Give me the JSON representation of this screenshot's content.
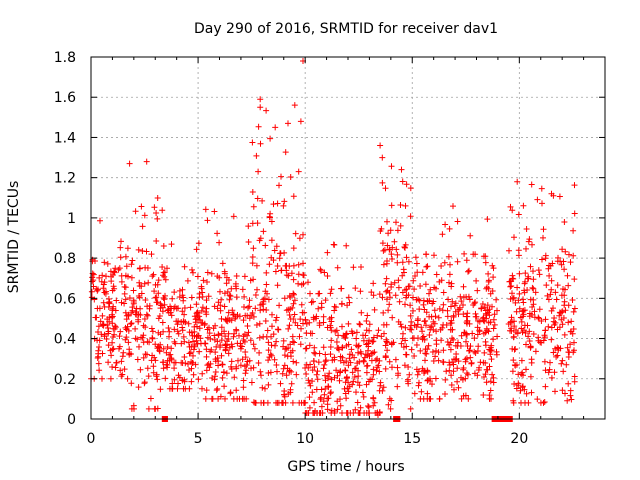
{
  "chart_data": {
    "type": "scatter",
    "title": "Day 290 of 2016, SRMTID for receiver dav1",
    "xlabel": "GPS time / hours",
    "ylabel": "SRMTID / TECUs",
    "xlim": [
      0,
      24
    ],
    "ylim": [
      0,
      1.8
    ],
    "xticks": [
      0,
      5,
      10,
      15,
      20
    ],
    "xtick_labels": [
      "0",
      "5",
      "10",
      "15",
      "20"
    ],
    "yticks": [
      0,
      0.2,
      0.4,
      0.6,
      0.8,
      1,
      1.2,
      1.4,
      1.6,
      1.8
    ],
    "ytick_labels": [
      "0",
      "0.2",
      "0.4",
      "0.6",
      "0.8",
      "1",
      "1.2",
      "1.4",
      "1.6",
      "1.8"
    ],
    "grid": true,
    "marker": "plus",
    "series": [
      {
        "name": "SRMTID",
        "color": "#ff0000",
        "cluster_summary": [
          {
            "x_range": [
              0.0,
              1.8
            ],
            "y_range": [
              0.2,
              1.0
            ],
            "typical": 0.5
          },
          {
            "x_range": [
              1.8,
              3.5
            ],
            "y_range": [
              0.05,
              1.12
            ],
            "typical": 0.5
          },
          {
            "x_range": [
              3.5,
              5.2
            ],
            "y_range": [
              0.15,
              0.9
            ],
            "typical": 0.4
          },
          {
            "x_range": [
              5.2,
              7.5
            ],
            "y_range": [
              0.1,
              1.05
            ],
            "typical": 0.4
          },
          {
            "x_range": [
              7.5,
              10.0
            ],
            "y_range": [
              0.08,
              1.59
            ],
            "typical": 0.45
          },
          {
            "x_range": [
              10.0,
              13.5
            ],
            "y_range": [
              0.03,
              0.96
            ],
            "typical": 0.28
          },
          {
            "x_range": [
              13.5,
              15.0
            ],
            "y_range": [
              0.05,
              1.36
            ],
            "typical": 0.55
          },
          {
            "x_range": [
              15.0,
              19.0
            ],
            "y_range": [
              0.1,
              1.06
            ],
            "typical": 0.42
          },
          {
            "x_range": [
              19.5,
              22.6
            ],
            "y_range": [
              0.08,
              1.18
            ],
            "typical": 0.5
          }
        ],
        "outliers": [
          {
            "x": 9.9,
            "y": 1.78
          },
          {
            "x": 9.8,
            "y": 1.48
          },
          {
            "x": 7.9,
            "y": 1.59
          },
          {
            "x": 7.9,
            "y": 1.55
          },
          {
            "x": 7.8,
            "y": 1.23
          },
          {
            "x": 9.2,
            "y": 1.47
          },
          {
            "x": 8.6,
            "y": 1.45
          },
          {
            "x": 9.7,
            "y": 1.23
          },
          {
            "x": 13.5,
            "y": 1.36
          },
          {
            "x": 13.6,
            "y": 1.3
          },
          {
            "x": 14.5,
            "y": 1.24
          },
          {
            "x": 2.6,
            "y": 1.28
          },
          {
            "x": 1.8,
            "y": 1.27
          },
          {
            "x": 19.9,
            "y": 1.18
          },
          {
            "x": 21.5,
            "y": 1.12
          },
          {
            "x": 3.0,
            "y": 0.05
          },
          {
            "x": 13.4,
            "y": 0.02
          }
        ],
        "zero_segments": [
          {
            "x_start": 3.4,
            "x_end": 3.5
          },
          {
            "x_start": 14.2,
            "x_end": 14.35
          },
          {
            "x_start": 18.8,
            "x_end": 19.6
          }
        ]
      }
    ]
  }
}
